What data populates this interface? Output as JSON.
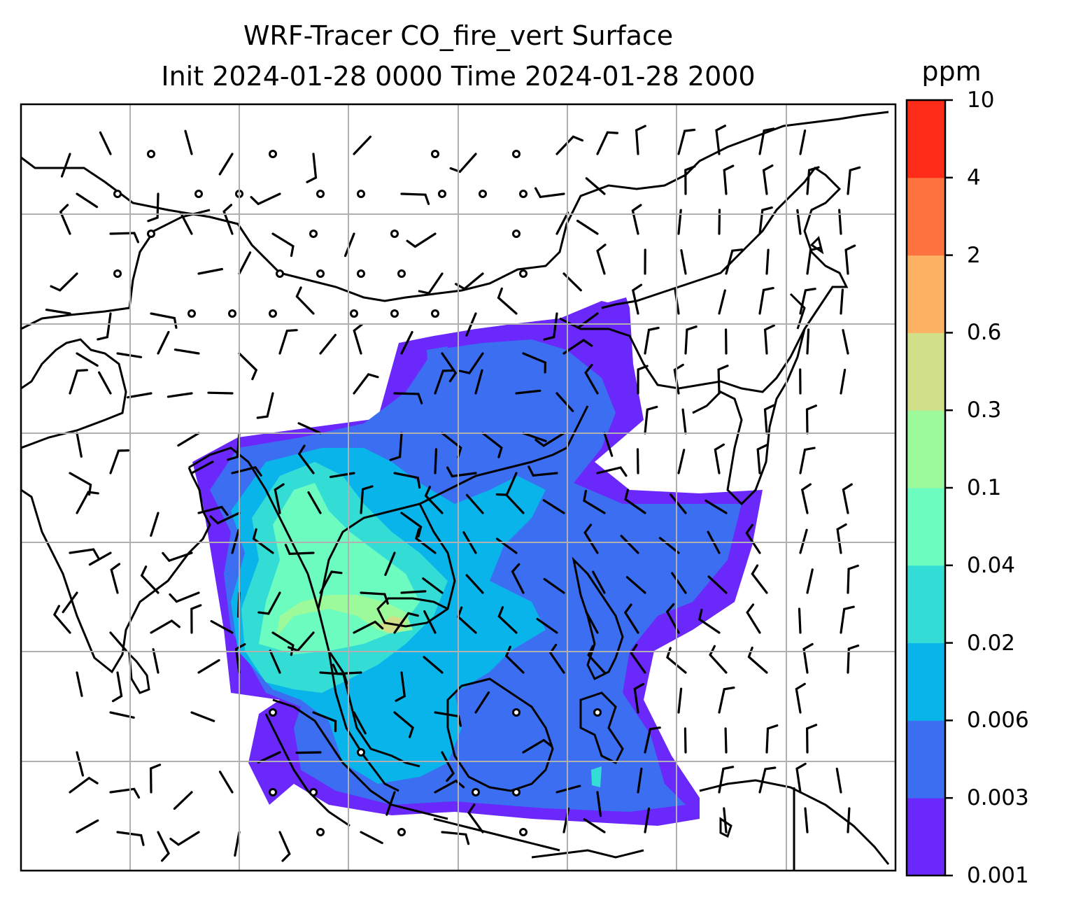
{
  "title": {
    "line1": "WRF-Tracer CO_fire_vert Surface",
    "line2": "Init 2024-01-28 0000 Time 2024-01-28 2000"
  },
  "colorbar": {
    "unit": "ppm",
    "levels": [
      "0.001",
      "0.003",
      "0.006",
      "0.02",
      "0.04",
      "0.1",
      "0.3",
      "0.6",
      "2",
      "4",
      "10"
    ],
    "colors": [
      "#6a28fa",
      "#3c6ef2",
      "#08b4ea",
      "#33ddd6",
      "#6cfcbf",
      "#9cfa9a",
      "#d1e088",
      "#fdb162",
      "#fd7340",
      "#fd2c18"
    ]
  },
  "map": {
    "gridlines": true,
    "background": "#ffffff",
    "coastline_color": "#000000"
  }
}
